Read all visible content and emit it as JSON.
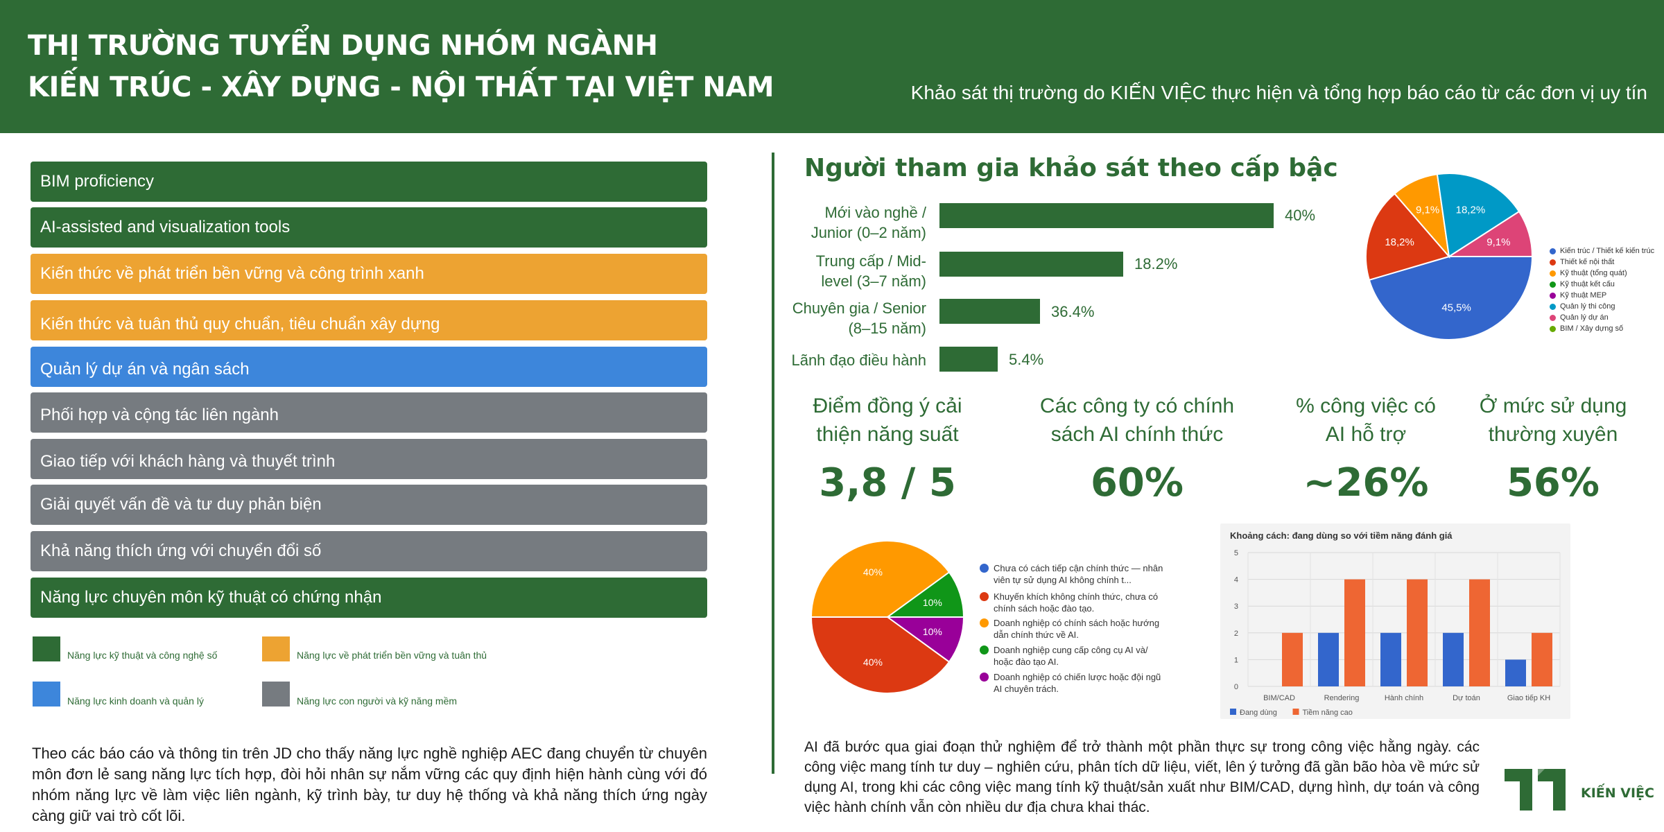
{
  "header": {
    "title_line1": "THỊ TRƯỜNG TUYỂN DỤNG NHÓM NGÀNH",
    "title_line2": "KIẾN TRÚC - XÂY DỰNG - NỘI THẤT TẠI VIỆT NAM",
    "subtitle": "Khảo sát thị trường do KIẾN VIỆC thực hiện và tổng hợp  báo cáo từ các đơn vị uy tín"
  },
  "skills": [
    {
      "label": "BIM proficiency",
      "color": "#2e6b35"
    },
    {
      "label": "AI-assisted and visualization tools",
      "color": "#2e6b35"
    },
    {
      "label": "Kiến thức về phát triển bền vững và công trình xanh",
      "color": "#eda332"
    },
    {
      "label": "Kiến thức và tuân thủ quy chuẩn, tiêu chuẩn xây dựng",
      "color": "#eda332"
    },
    {
      "label": "Quản lý dự án và ngân sách",
      "color": "#3d86db"
    },
    {
      "label": "Phối hợp và cộng tác liên ngành",
      "color": "#767b80"
    },
    {
      "label": "Giao tiếp với khách hàng và thuyết trình",
      "color": "#767b80"
    },
    {
      "label": "Giải quyết vấn đề và tư duy phản biện",
      "color": "#767b80"
    },
    {
      "label": "Khả năng thích ứng với chuyển đổi số",
      "color": "#767b80"
    },
    {
      "label": "Năng lực chuyên môn kỹ thuật có chứng nhận",
      "color": "#2e6b35"
    }
  ],
  "skill_legend": [
    {
      "label": "Năng lực kỹ thuật và công nghệ số",
      "color": "#2e6b35"
    },
    {
      "label": "Năng lực về phát triển bền vững và tuân thủ",
      "color": "#eda332"
    },
    {
      "label": "Năng lực kinh doanh và quản lý",
      "color": "#3d86db"
    },
    {
      "label": "Năng lực con người và kỹ năng mềm",
      "color": "#767b80"
    }
  ],
  "left_paragraph": "Theo các báo cáo và thông tin trên JD cho thấy năng lực nghề nghiệp AEC đang chuyển từ chuyên môn đơn lẻ sang năng lực tích hợp, đòi hỏi nhân sự nắm vững các quy định hiện hành cùng với đó nhóm năng lực về làm việc liên ngành, kỹ trình bày, tư duy hệ thống và khả năng thích ứng ngày càng giữ vai trò cốt lõi.",
  "right_paragraph": "AI đã bước qua giai đoạn thử nghiệm để trở thành một phần thực sự trong công việc hằng ngày. các công việc mang tính tư duy – nghiên cứu, phân tích dữ liệu, viết, lên ý tưởng đã gần bão hòa về mức sử dụng AI, trong khi các công việc mang tính kỹ thuật/sản xuất như BIM/CAD, dựng hình, dự toán và công việc hành chính vẫn còn nhiều dư địa chưa khai thác.",
  "stats": [
    {
      "label_line1": "Điểm đồng ý cải",
      "label_line2": "thiện năng suất",
      "value": "3,8 / 5"
    },
    {
      "label_line1": "Các công ty có chính",
      "label_line2": "sách AI chính thức",
      "value": "60%"
    },
    {
      "label_line1": "% công việc có",
      "label_line2": "AI hỗ trợ",
      "value": "~26%"
    },
    {
      "label_line1": "Ở mức sử dụng",
      "label_line2": "thường xuyên",
      "value": "56%"
    }
  ],
  "logo": {
    "text": "KIẾN VIỆC",
    "color": "#2e6b35"
  },
  "chart_data": [
    {
      "type": "bar",
      "orientation": "horizontal",
      "title": "Người tham gia khảo sát theo cấp bậc",
      "categories": [
        {
          "line1": "Mới vào nghề /",
          "line2": "Junior (0–2 năm)"
        },
        {
          "line1": "Trung cấp / Mid-",
          "line2": "level (3–7 năm)"
        },
        {
          "line1": "Chuyên gia / Senior",
          "line2": "(8–15 năm)"
        },
        {
          "line1": "Lãnh đạo điều hành",
          "line2": ""
        }
      ],
      "values": [
        40,
        18.2,
        36.4,
        5.4
      ],
      "data_labels": [
        "40%",
        "18.2%",
        "36.4%",
        "5.4%"
      ],
      "bar_lengths": [
        40,
        22,
        12,
        7
      ],
      "color": "#2e6b35"
    },
    {
      "type": "pie",
      "slices": [
        {
          "label": "Kiến trúc / Thiết kế kiến trúc",
          "value": 45.5,
          "text": "45,5%",
          "color": "#3366cc"
        },
        {
          "label": "Thiết kế nội thất",
          "value": 18.2,
          "text": "18,2%",
          "color": "#dc3912"
        },
        {
          "label": "Kỹ thuật (tổng quát)",
          "value": 9.1,
          "text": "9,1%",
          "color": "#ff9900"
        },
        {
          "label": "Kỹ thuật kết cấu",
          "value": 0,
          "text": "",
          "color": "#109618"
        },
        {
          "label": "Kỹ thuật MEP",
          "value": 0,
          "text": "",
          "color": "#990099"
        },
        {
          "label": "Quản lý thi công",
          "value": 18.2,
          "text": "18,2%",
          "color": "#0099c6"
        },
        {
          "label": "Quản lý dự án",
          "value": 9.1,
          "text": "9,1%",
          "color": "#dd4477"
        },
        {
          "label": "BIM / Xây dựng số",
          "value": 0,
          "text": "",
          "color": "#66aa00"
        }
      ]
    },
    {
      "type": "pie",
      "slices": [
        {
          "label": "Chưa có cách tiếp cận chính thức — nhân viên tự sử dụng AI không chính t...",
          "value": 0,
          "text": "",
          "color": "#3366cc"
        },
        {
          "label": "Khuyến khích không chính thức, chưa có chính sách hoặc đào tạo.",
          "value": 40,
          "text": "40%",
          "color": "#dc3912"
        },
        {
          "label": "Doanh nghiệp có chính sách hoặc hướng dẫn chính thức về AI.",
          "value": 40,
          "text": "40%",
          "color": "#ff9900"
        },
        {
          "label": "Doanh nghiệp cung cấp công cụ AI và/ hoặc đào tạo AI.",
          "value": 10,
          "text": "10%",
          "color": "#109618"
        },
        {
          "label": "Doanh nghiệp có chiến lược hoặc đội ngũ AI chuyên trách.",
          "value": 10,
          "text": "10%",
          "color": "#990099"
        }
      ]
    },
    {
      "type": "bar",
      "title": "Khoảng cách: đang dùng so với tiềm năng đánh giá",
      "categories": [
        "BIM/CAD",
        "Rendering",
        "Hành chính",
        "Dự toán",
        "Giao tiếp KH"
      ],
      "series": [
        {
          "name": "Đang dùng",
          "values": [
            0,
            2,
            2,
            2,
            1
          ],
          "color": "#3366cc"
        },
        {
          "name": "Tiềm năng cao",
          "values": [
            2,
            4,
            4,
            4,
            2
          ],
          "color": "#ee6633"
        }
      ],
      "ylim": [
        0,
        5
      ],
      "yticks": [
        "0",
        "1",
        "2",
        "3",
        "4",
        "5"
      ],
      "grid": true,
      "legend": "bottom-left"
    }
  ]
}
